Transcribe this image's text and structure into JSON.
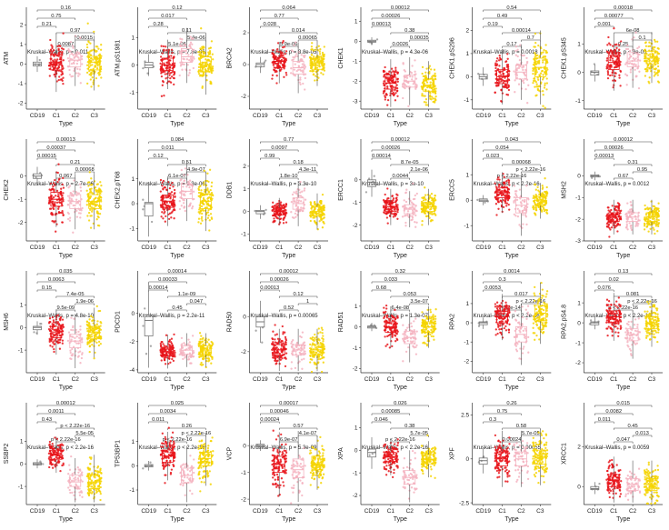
{
  "chart_data": [
    {
      "type": "box",
      "ylabel": "ATM",
      "xlabel": "Type",
      "categories": [
        "CD19",
        "C1",
        "C2",
        "C3"
      ],
      "yticks": [
        -2,
        -1,
        0,
        1,
        2
      ],
      "ylim": [
        -2.3,
        2.9
      ],
      "pvalues": [
        "0.16",
        "0.75",
        "0.21",
        "0.97",
        "0.0015"
      ],
      "pvalues_inline": [
        "0.0087"
      ],
      "kruskal": "Kruskal–Wallis, p = 0.011",
      "medians": [
        0,
        0.1,
        0.2,
        0.1
      ],
      "q1": [
        -0.1,
        -0.3,
        -0.15,
        -0.3
      ],
      "q3": [
        0.1,
        0.45,
        0.5,
        0.4
      ]
    },
    {
      "type": "box",
      "ylabel": "ATM.pS1981",
      "xlabel": "Type",
      "categories": [
        "CD19",
        "C1",
        "C2",
        "C3"
      ],
      "yticks": [
        -1,
        0,
        1
      ],
      "ylim": [
        -1.6,
        2.1
      ],
      "pvalues": [
        "0.12",
        "0.017",
        "0.28",
        "0.11",
        "5.4e-06"
      ],
      "pvalues_inline": [
        "5.1e-06"
      ],
      "kruskal": "Kruskal–Wallis, p = 7.8e-06",
      "medians": [
        0,
        0,
        0.3,
        0
      ],
      "q1": [
        -0.1,
        -0.2,
        0.1,
        -0.25
      ],
      "q3": [
        0.1,
        0.25,
        0.6,
        0.3
      ]
    },
    {
      "type": "box",
      "ylabel": "BRCA2",
      "xlabel": "Type",
      "categories": [
        "CD19",
        "C1",
        "C2",
        "C3"
      ],
      "yticks": [
        -2,
        0,
        2
      ],
      "ylim": [
        -2.8,
        3.6
      ],
      "pvalues": [
        "0.064",
        "0.77",
        "0.028",
        "0.014",
        "0.00065"
      ],
      "pvalues_inline": [
        "5.9e-06"
      ],
      "kruskal": "Kruskal–Wallis, p = 3.8e-05",
      "medians": [
        0,
        0.2,
        -0.2,
        0.1
      ],
      "q1": [
        -0.15,
        -0.2,
        -0.6,
        -0.3
      ],
      "q3": [
        0.1,
        0.45,
        0.2,
        0.4
      ]
    },
    {
      "type": "box",
      "ylabel": "CHEK1",
      "xlabel": "Type",
      "categories": [
        "CD19",
        "C1",
        "C2",
        "C3"
      ],
      "yticks": [
        -3,
        -2,
        -1,
        0,
        1
      ],
      "ylim": [
        -3.4,
        1.7
      ],
      "pvalues": [
        "0.00012",
        "0.00026",
        "0.00013",
        "0.38",
        "0.00035"
      ],
      "pvalues_inline": [
        "0.0026"
      ],
      "kruskal": "Kruskal–Wallis, p = 4.3e-06",
      "medians": [
        0,
        -2.1,
        -2.0,
        -2.2
      ],
      "q1": [
        -0.05,
        -2.4,
        -2.3,
        -2.5
      ],
      "q3": [
        0.05,
        -1.8,
        -1.7,
        -1.9
      ]
    },
    {
      "type": "box",
      "ylabel": "CHEK1.pS296",
      "xlabel": "Type",
      "categories": [
        "CD19",
        "C1",
        "C2",
        "C3"
      ],
      "yticks": [
        -1,
        0,
        1,
        2
      ],
      "ylim": [
        -1.4,
        3.0
      ],
      "pvalues": [
        "0.54",
        "0.49",
        "0.19",
        "0.00014",
        "0.7"
      ],
      "pvalues_inline": [
        "0.17"
      ],
      "kruskal": "Kruskal–Wallis, p = 0.0018",
      "medians": [
        0,
        0,
        0.2,
        0.4
      ],
      "q1": [
        -0.1,
        -0.3,
        -0.1,
        0
      ],
      "q3": [
        0.1,
        0.3,
        0.5,
        0.8
      ]
    },
    {
      "type": "box",
      "ylabel": "CHEK1.pS345",
      "xlabel": "Type",
      "categories": [
        "CD19",
        "C1",
        "C2",
        "C3"
      ],
      "yticks": [
        -1,
        0,
        1
      ],
      "ylim": [
        -1.3,
        2.3
      ],
      "pvalues": [
        "0.00018",
        "0.00077",
        "0.001",
        "6e-08",
        "0.1"
      ],
      "pvalues_inline": [
        "0.25"
      ],
      "kruskal": "Kruskal–Wallis, p = 3e-09",
      "medians": [
        0,
        0.35,
        0.4,
        0.5
      ],
      "q1": [
        -0.1,
        0.1,
        0.2,
        0.3
      ],
      "q3": [
        0.05,
        0.6,
        0.7,
        0.75
      ]
    },
    {
      "type": "box",
      "ylabel": "CHEK2",
      "xlabel": "Type",
      "categories": [
        "CD19",
        "C1",
        "C2",
        "C3"
      ],
      "yticks": [
        -2,
        -1,
        0
      ],
      "ylim": [
        -2.8,
        1.6
      ],
      "pvalues": [
        "0.00013",
        "0.00037",
        "0.00015",
        "0.21",
        "0.00068"
      ],
      "pvalues_inline": [
        "0.067"
      ],
      "kruskal": "Kruskal–Wallis, p = 2.7e-06",
      "medians": [
        0,
        -1.0,
        -1.1,
        -1.1
      ],
      "q1": [
        -0.1,
        -1.3,
        -1.4,
        -1.4
      ],
      "q3": [
        0.1,
        -0.7,
        -0.8,
        -0.8
      ]
    },
    {
      "type": "box",
      "ylabel": "CHEK2.pT68",
      "xlabel": "Type",
      "categories": [
        "CD19",
        "C1",
        "C2",
        "C3"
      ],
      "yticks": [
        -1,
        0,
        1
      ],
      "ylim": [
        -1.5,
        2.6
      ],
      "pvalues": [
        "0.084",
        "0.011",
        "0.12",
        "0.51",
        "4.9e-07"
      ],
      "pvalues_inline": [
        "6.1e-07"
      ],
      "kruskal": "Kruskal–Wallis, p = 1.3e-06",
      "medians": [
        0,
        0.1,
        0.5,
        0.1
      ],
      "q1": [
        -0.5,
        -0.15,
        0.2,
        -0.2
      ],
      "q3": [
        0.05,
        0.35,
        0.8,
        0.4
      ]
    },
    {
      "type": "box",
      "ylabel": "DDB1",
      "xlabel": "Type",
      "categories": [
        "CD19",
        "C1",
        "C2",
        "C3"
      ],
      "yticks": [
        -1,
        0,
        1,
        2
      ],
      "ylim": [
        -1.3,
        3.2
      ],
      "pvalues": [
        "0.77",
        "0.0097",
        "0.99",
        "0.18",
        "4.3e-11"
      ],
      "pvalues_inline": [
        "1.8e-10"
      ],
      "kruskal": "Kruskal–Wallis, p = 3.3e-10",
      "medians": [
        0,
        0,
        0.35,
        0
      ],
      "q1": [
        -0.1,
        -0.15,
        0.1,
        -0.2
      ],
      "q3": [
        0.05,
        0.15,
        0.6,
        0.2
      ]
    },
    {
      "type": "box",
      "ylabel": "ERCC1",
      "xlabel": "Type",
      "categories": [
        "CD19",
        "C1",
        "C2",
        "C3"
      ],
      "yticks": [
        -2,
        -1,
        0
      ],
      "ylim": [
        -2.7,
        1.8
      ],
      "pvalues": [
        "0.00012",
        "0.00026",
        "0.00014",
        "8.7e-05",
        "2.1e-06"
      ],
      "pvalues_inline": [
        "0.0044"
      ],
      "kruskal": "Kruskal–Wallis, p = 3e-10",
      "medians": [
        -0.1,
        -1.2,
        -1.3,
        -1.2
      ],
      "q1": [
        -0.3,
        -1.4,
        -1.5,
        -1.4
      ],
      "q3": [
        0,
        -1.0,
        -1.1,
        -1.0
      ]
    },
    {
      "type": "box",
      "ylabel": "ERCC5",
      "xlabel": "Type",
      "categories": [
        "CD19",
        "C1",
        "C2",
        "C3"
      ],
      "yticks": [
        -1,
        0,
        1
      ],
      "ylim": [
        -1.6,
        2.4
      ],
      "pvalues": [
        "0.043",
        "0.054",
        "0.023",
        "0.00068",
        "p < 2.22e-16"
      ],
      "pvalues_inline": [
        "p < 2.22e-16"
      ],
      "kruskal": "Kruskal–Wallis, p < 2.2e-16",
      "medians": [
        0,
        0.3,
        -0.2,
        0
      ],
      "q1": [
        -0.05,
        0.1,
        -0.5,
        -0.2
      ],
      "q3": [
        0.05,
        0.5,
        0.1,
        0.15
      ]
    },
    {
      "type": "box",
      "ylabel": "MSH2",
      "xlabel": "Type",
      "categories": [
        "CD19",
        "C1",
        "C2",
        "C3"
      ],
      "yticks": [
        -3,
        -2,
        -1,
        0
      ],
      "ylim": [
        -3.0,
        1.7
      ],
      "pvalues": [
        "0.00012",
        "0.00026",
        "0.00013",
        "0.31",
        "0.95"
      ],
      "pvalues_inline": [
        "0.67"
      ],
      "kruskal": "Kruskal–Wallis, p = 0.0012",
      "medians": [
        0,
        -1.9,
        -1.9,
        -1.9
      ],
      "q1": [
        -0.05,
        -2.1,
        -2.1,
        -2.1
      ],
      "q3": [
        0.05,
        -1.7,
        -1.7,
        -1.7
      ]
    },
    {
      "type": "box",
      "ylabel": "MSH6",
      "xlabel": "Type",
      "categories": [
        "CD19",
        "C1",
        "C2",
        "C3"
      ],
      "yticks": [
        -1,
        0,
        1
      ],
      "ylim": [
        -2.0,
        2.5
      ],
      "pvalues": [
        "0.035",
        "0.0063",
        "0.15",
        "7.4e-05",
        "1.9e-06"
      ],
      "pvalues_inline": [
        "9.5e-09"
      ],
      "kruskal": "Kruskal–Wallis, p = 4.8e-10",
      "medians": [
        0,
        -0.2,
        -0.6,
        -0.2
      ],
      "q1": [
        -0.1,
        -0.45,
        -0.9,
        -0.5
      ],
      "q3": [
        0.05,
        0.05,
        -0.3,
        0.05
      ]
    },
    {
      "type": "box",
      "ylabel": "PDCD1",
      "xlabel": "Type",
      "categories": [
        "CD19",
        "C1",
        "C2",
        "C3"
      ],
      "yticks": [
        -4,
        -2,
        0
      ],
      "ylim": [
        -4.2,
        3.0
      ],
      "pvalues": [
        "0.00014",
        "0.00033",
        "0.00014",
        "1.1e-09",
        "0.047"
      ],
      "pvalues_inline": [
        "0.45"
      ],
      "kruskal": "Kruskal–Wallis, p = 2.2e-11",
      "medians": [
        -0.5,
        -2.7,
        -2.6,
        -2.6
      ],
      "q1": [
        -1.6,
        -3.0,
        -2.9,
        -2.9
      ],
      "q3": [
        -0.1,
        -2.4,
        -2.3,
        -2.3
      ]
    },
    {
      "type": "box",
      "ylabel": "RAD50",
      "xlabel": "Type",
      "categories": [
        "CD19",
        "C1",
        "C2",
        "C3"
      ],
      "yticks": [
        -2,
        0
      ],
      "ylim": [
        -3.2,
        2.6
      ],
      "pvalues": [
        "0.00012",
        "0.00026",
        "0.00013",
        "0.12",
        "1"
      ],
      "pvalues_inline": [
        "0.52"
      ],
      "kruskal": "Kruskal–Wallis, p = 0.00065",
      "medians": [
        -0.3,
        -1.9,
        -1.9,
        -1.9
      ],
      "q1": [
        -0.6,
        -2.2,
        -2.2,
        -2.2
      ],
      "q3": [
        0,
        -1.6,
        -1.6,
        -1.6
      ]
    },
    {
      "type": "box",
      "ylabel": "RAD51",
      "xlabel": "Type",
      "categories": [
        "CD19",
        "C1",
        "C2",
        "C3"
      ],
      "yticks": [
        -2,
        -1,
        0,
        1
      ],
      "ylim": [
        -2.2,
        2.7
      ],
      "pvalues": [
        "0.32",
        "0.033",
        "0.68",
        "0.053",
        "3.5e-07"
      ],
      "pvalues_inline": [
        "6.4e-08"
      ],
      "kruskal": "Kruskal–Wallis, p = 1.3e-07",
      "medians": [
        0,
        0,
        -0.5,
        0
      ],
      "q1": [
        -0.05,
        -0.25,
        -0.8,
        -0.25
      ],
      "q3": [
        0.05,
        0.25,
        -0.2,
        0.25
      ]
    },
    {
      "type": "box",
      "ylabel": "RPA2",
      "xlabel": "Type",
      "categories": [
        "CD19",
        "C1",
        "C2",
        "C3"
      ],
      "yticks": [
        -2,
        -1,
        0,
        1
      ],
      "ylim": [
        -2.6,
        2.7
      ],
      "pvalues": [
        "0.0014",
        "0.3",
        "0.0053",
        "0.017",
        "p < 2.22e-16"
      ],
      "pvalues_inline": [
        "1.2e-14"
      ],
      "kruskal": "Kruskal–Wallis, p < 2.2e-16",
      "medians": [
        0,
        0.3,
        -0.6,
        0.5
      ],
      "q1": [
        -0.1,
        0,
        -1.0,
        0.1
      ],
      "q3": [
        0.05,
        0.6,
        -0.2,
        0.9
      ]
    },
    {
      "type": "box",
      "ylabel": "RPA2.pS4.8",
      "xlabel": "Type",
      "categories": [
        "CD19",
        "C1",
        "C2",
        "C3"
      ],
      "yticks": [
        -2,
        -1,
        0,
        1
      ],
      "ylim": [
        -2.5,
        2.6
      ],
      "pvalues": [
        "0.13",
        "0.02",
        "0.076",
        "0.081",
        "p < 2.22e-16"
      ],
      "pvalues_inline": [
        "p < 2.22e-16"
      ],
      "kruskal": "Kruskal–Wallis, p < 2.2e-16",
      "medians": [
        0,
        0.3,
        -0.6,
        0
      ],
      "q1": [
        -0.1,
        0,
        -0.9,
        -0.3
      ],
      "q3": [
        0.05,
        0.6,
        -0.3,
        0.3
      ]
    },
    {
      "type": "box",
      "ylabel": "SSBP2",
      "xlabel": "Type",
      "categories": [
        "CD19",
        "C1",
        "C2",
        "C3"
      ],
      "yticks": [
        -1,
        0,
        1
      ],
      "ylim": [
        -1.8,
        2.7
      ],
      "pvalues": [
        "0.00012",
        "0.0011",
        "0.43",
        "p < 2.22e-16",
        "5.5e-05"
      ],
      "pvalues_inline": [
        "p < 2.22e-16"
      ],
      "kruskal": "Kruskal–Wallis, p < 2.2e-16",
      "medians": [
        0,
        0.4,
        -0.8,
        -0.8
      ],
      "q1": [
        -0.05,
        0.2,
        -1.0,
        -1.1
      ],
      "q3": [
        0.05,
        0.6,
        -0.5,
        -0.5
      ]
    },
    {
      "type": "box",
      "ylabel": "TP53BP1",
      "xlabel": "Type",
      "categories": [
        "CD19",
        "C1",
        "C2",
        "C3"
      ],
      "yticks": [
        -1,
        0,
        1
      ],
      "ylim": [
        -1.6,
        2.6
      ],
      "pvalues": [
        "0.025",
        "0.0034",
        "0.011",
        "0.26",
        "p < 2.22e-16"
      ],
      "pvalues_inline": [
        "p < 2.22e-16"
      ],
      "kruskal": "Kruskal–Wallis, p < 2.2e-16",
      "medians": [
        0,
        0.4,
        -0.4,
        0.3
      ],
      "q1": [
        -0.05,
        0.15,
        -0.7,
        0
      ],
      "q3": [
        0.05,
        0.65,
        -0.1,
        0.55
      ]
    },
    {
      "type": "box",
      "ylabel": "VCP",
      "xlabel": "Type",
      "categories": [
        "CD19",
        "C1",
        "C2",
        "C3"
      ],
      "yticks": [
        -2,
        -1,
        0
      ],
      "ylim": [
        -2.2,
        1.6
      ],
      "pvalues": [
        "0.00017",
        "0.00046",
        "0.00024",
        "0.57",
        "4.1e-07"
      ],
      "pvalues_inline": [
        "6.9e-07"
      ],
      "kruskal": "Kruskal–Wallis, p = 5.3e-09",
      "medians": [
        0,
        -0.7,
        -0.9,
        -0.7
      ],
      "q1": [
        -0.05,
        -1.0,
        -1.2,
        -0.9
      ],
      "q3": [
        0.05,
        -0.4,
        -0.5,
        -0.4
      ]
    },
    {
      "type": "box",
      "ylabel": "XPA",
      "xlabel": "Type",
      "categories": [
        "CD19",
        "C1",
        "C2",
        "C3"
      ],
      "yticks": [
        -2,
        -1,
        0,
        1
      ],
      "ylim": [
        -2.4,
        2.1
      ],
      "pvalues": [
        "0.026",
        "0.00085",
        "0.046",
        "0.38",
        "5.7e-05"
      ],
      "pvalues_inline": [
        "p < 2.22e-16"
      ],
      "kruskal": "Kruskal–Wallis, p < 2.2e-16",
      "medians": [
        -0.1,
        -0.3,
        -1.2,
        -0.4
      ],
      "q1": [
        -0.3,
        -0.5,
        -1.5,
        -0.6
      ],
      "q3": [
        0.05,
        -0.1,
        -0.9,
        -0.2
      ]
    },
    {
      "type": "box",
      "ylabel": "XPF",
      "xlabel": "Type",
      "categories": [
        "CD19",
        "C1",
        "C2",
        "C3"
      ],
      "yticks": [
        -2.5,
        0,
        2.5
      ],
      "ylim": [
        -2.6,
        3.2
      ],
      "pvalues": [
        "0.26",
        "0.75",
        "0.3",
        "0.58",
        "5.7e-05"
      ],
      "pvalues_inline": [
        "0.00024"
      ],
      "kruskal": "Kruskal–Wallis, p = 0.00055",
      "medians": [
        -0.1,
        0,
        0,
        0.1
      ],
      "q1": [
        -0.3,
        -0.4,
        -0.4,
        -0.3
      ],
      "q3": [
        0.05,
        0.4,
        0.4,
        0.5
      ]
    },
    {
      "type": "box",
      "ylabel": "XRCC1",
      "xlabel": "Type",
      "categories": [
        "CD19",
        "C1",
        "C2",
        "C3"
      ],
      "yticks": [
        0,
        2
      ],
      "ylim": [
        -0.9,
        4.2
      ],
      "pvalues": [
        "0.015",
        "0.0082",
        "0.011",
        "0.45",
        "0.013"
      ],
      "pvalues_inline": [
        "0.047"
      ],
      "kruskal": "Kruskal–Wallis, p = 0.0059",
      "medians": [
        -0.1,
        0.3,
        0.1,
        0.1
      ],
      "q1": [
        -0.15,
        0,
        -0.2,
        -0.2
      ],
      "q3": [
        0,
        0.6,
        0.4,
        0.4
      ]
    }
  ],
  "colors": {
    "CD19": "#9e9e9e",
    "C1": "#e8141a",
    "C2": "#f4b3c0",
    "C3": "#f5d400",
    "line": "#333333"
  }
}
